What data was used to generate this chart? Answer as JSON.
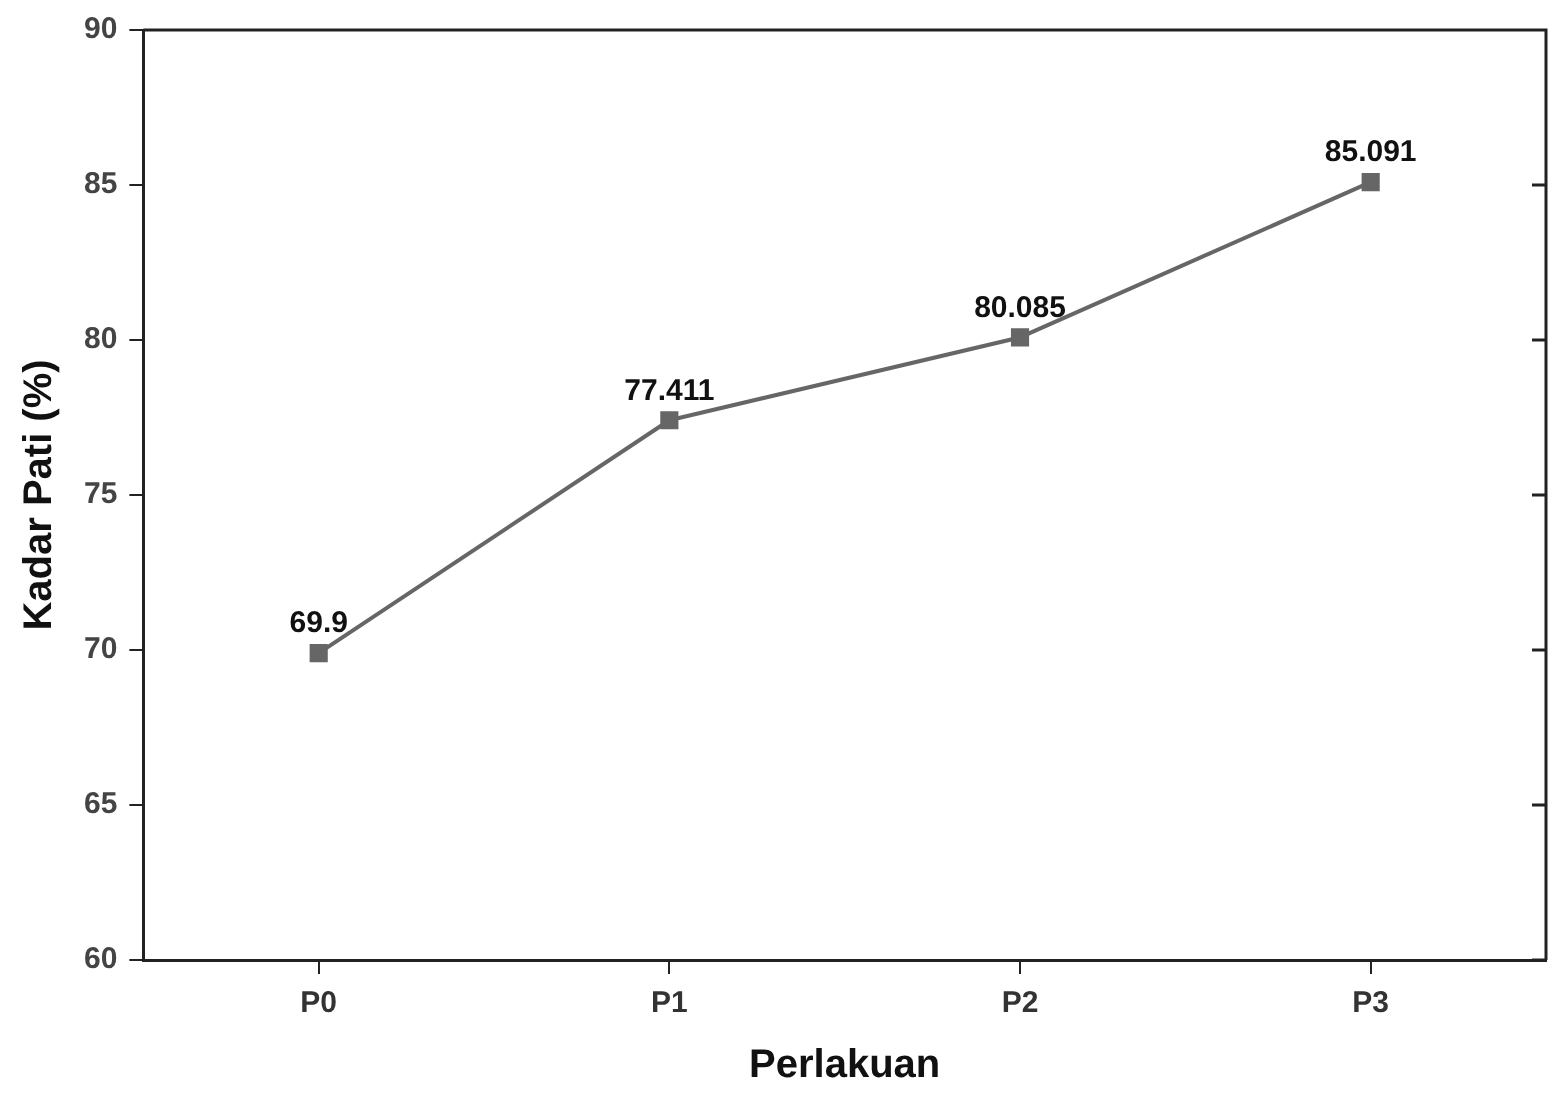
{
  "chart_data": {
    "type": "line",
    "xlabel": "Perlakuan",
    "ylabel": "Kadar Pati (%)",
    "categories": [
      "P0",
      "P1",
      "P2",
      "P3"
    ],
    "series": [
      {
        "color": "#666666",
        "values": [
          69.9,
          77.411,
          80.085,
          85.091
        ]
      }
    ],
    "ylim": [
      60,
      90
    ],
    "yticks": [
      60,
      65,
      70,
      75,
      80,
      85,
      90
    ],
    "grid": false,
    "legend": false,
    "marker": "square",
    "line_style": "solid",
    "data_labels": true
  }
}
